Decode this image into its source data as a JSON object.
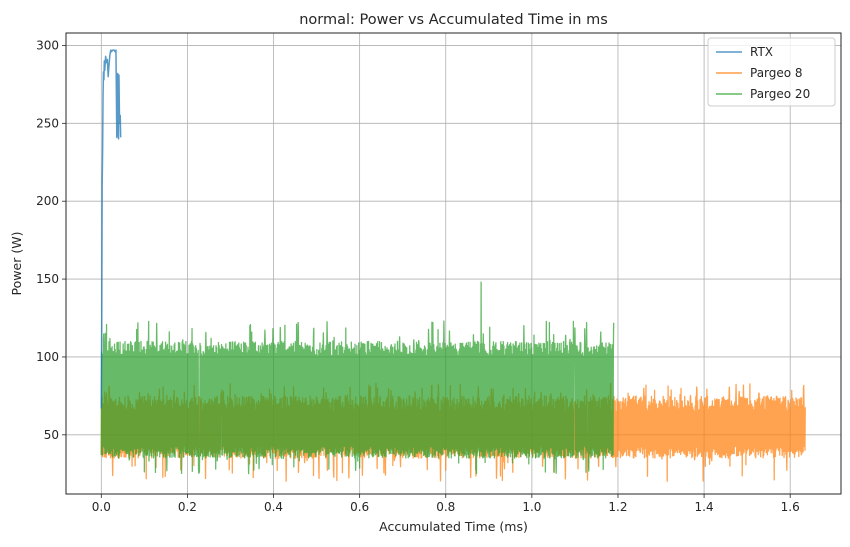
{
  "chart_data": {
    "type": "line",
    "title": "normal: Power vs Accumulated Time in ms",
    "xlabel": "Accumulated Time (ms)",
    "ylabel": "Power (W)",
    "xlim": [
      -0.082,
      1.718
    ],
    "ylim": [
      12,
      308
    ],
    "xticks": [
      0.0,
      0.2,
      0.4,
      0.6,
      0.8,
      1.0,
      1.2,
      1.4,
      1.6
    ],
    "xtick_labels": [
      "0.0",
      "0.2",
      "0.4",
      "0.6",
      "0.8",
      "1.0",
      "1.2",
      "1.4",
      "1.6"
    ],
    "yticks": [
      50,
      100,
      150,
      200,
      250,
      300
    ],
    "ytick_labels": [
      "50",
      "100",
      "150",
      "200",
      "250",
      "300"
    ],
    "grid": true,
    "legend_position": "top-right",
    "series": [
      {
        "name": "RTX",
        "color": "#1f77b4",
        "x": [
          0.0,
          0.001,
          0.002,
          0.003,
          0.004,
          0.005,
          0.006,
          0.007,
          0.008,
          0.01,
          0.012,
          0.014,
          0.016,
          0.018,
          0.02,
          0.022,
          0.024,
          0.026,
          0.028,
          0.03,
          0.032,
          0.034,
          0.036,
          0.037,
          0.038,
          0.039,
          0.04,
          0.041,
          0.042,
          0.043,
          0.044,
          0.045
        ],
        "y": [
          67,
          120,
          210,
          232,
          268,
          283,
          278,
          290,
          284,
          293,
          289,
          291,
          280,
          288,
          294,
          297,
          296,
          297,
          297,
          297,
          296,
          297,
          241,
          260,
          282,
          246,
          240,
          281,
          258,
          250,
          255,
          241
        ]
      },
      {
        "name": "Pargeo 8",
        "color": "#ff7f0e",
        "x_start": 0.0,
        "x_end": 1.635,
        "typical_range": [
          35,
          75
        ],
        "extremes_range": [
          20,
          98
        ]
      },
      {
        "name": "Pargeo 20",
        "color": "#2ca02c",
        "x_start": 0.0,
        "x_end": 1.19,
        "typical_range": [
          35,
          110
        ],
        "extremes_range": [
          25,
          148
        ],
        "spike": {
          "x": 0.882,
          "y": 148
        }
      }
    ]
  }
}
